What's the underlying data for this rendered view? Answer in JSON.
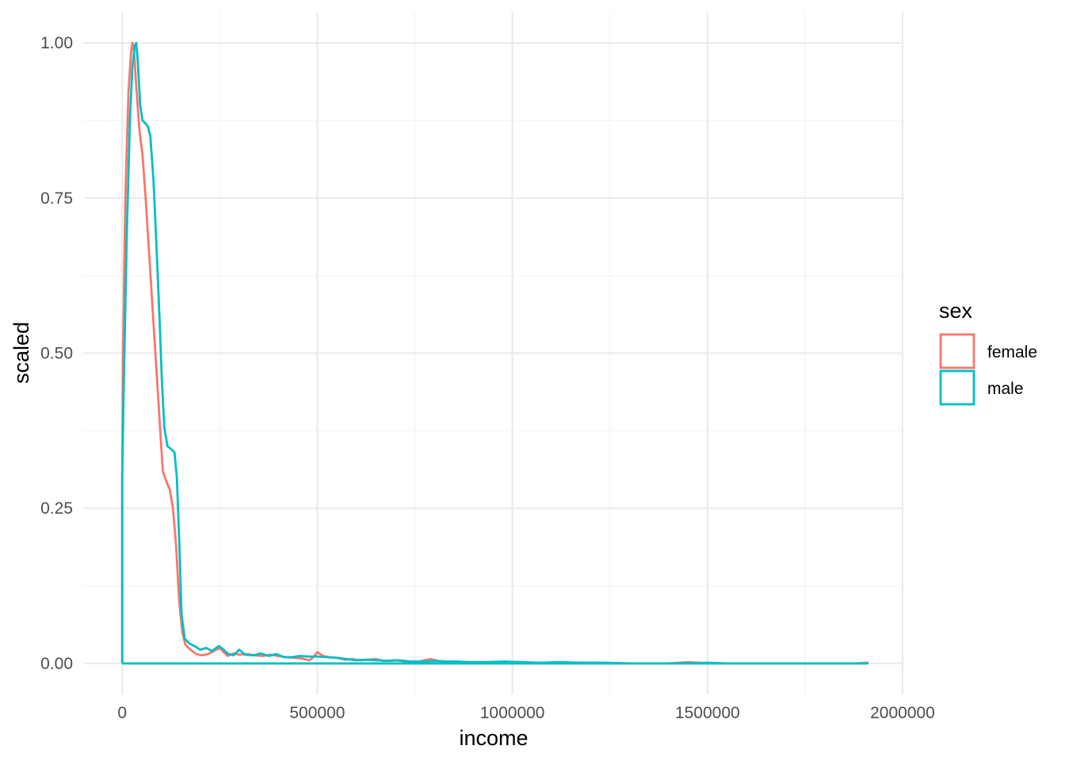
{
  "chart_data": {
    "type": "line",
    "title": "",
    "xlabel": "income",
    "ylabel": "scaled",
    "xlim": [
      -100000,
      2000000
    ],
    "ylim": [
      -0.05,
      1.05
    ],
    "x_ticks": [
      0,
      500000,
      1000000,
      1500000,
      2000000
    ],
    "x_tick_labels": [
      "0",
      "500000",
      "1000000",
      "1500000",
      "2000000"
    ],
    "y_ticks": [
      0.0,
      0.25,
      0.5,
      0.75,
      1.0
    ],
    "y_tick_labels": [
      "0.00",
      "0.25",
      "0.50",
      "0.75",
      "1.00"
    ],
    "grid": true,
    "legend": {
      "title": "sex",
      "position": "right"
    },
    "series": [
      {
        "name": "female",
        "color": "#F8766D",
        "points": [
          [
            0,
            0.0
          ],
          [
            0,
            0.3
          ],
          [
            2000,
            0.5
          ],
          [
            8000,
            0.75
          ],
          [
            16000,
            0.92
          ],
          [
            22000,
            0.98
          ],
          [
            26000,
            1.0
          ],
          [
            30000,
            0.99
          ],
          [
            36000,
            0.93
          ],
          [
            44000,
            0.86
          ],
          [
            52000,
            0.82
          ],
          [
            60000,
            0.75
          ],
          [
            70000,
            0.65
          ],
          [
            80000,
            0.55
          ],
          [
            90000,
            0.45
          ],
          [
            98000,
            0.37
          ],
          [
            104000,
            0.31
          ],
          [
            112000,
            0.295
          ],
          [
            122000,
            0.28
          ],
          [
            130000,
            0.25
          ],
          [
            138000,
            0.19
          ],
          [
            146000,
            0.1
          ],
          [
            154000,
            0.05
          ],
          [
            162000,
            0.03
          ],
          [
            175000,
            0.022
          ],
          [
            190000,
            0.015
          ],
          [
            205000,
            0.013
          ],
          [
            220000,
            0.015
          ],
          [
            235000,
            0.02
          ],
          [
            250000,
            0.025
          ],
          [
            260000,
            0.018
          ],
          [
            270000,
            0.012
          ],
          [
            285000,
            0.016
          ],
          [
            300000,
            0.014
          ],
          [
            320000,
            0.015
          ],
          [
            340000,
            0.013
          ],
          [
            360000,
            0.012
          ],
          [
            380000,
            0.014
          ],
          [
            400000,
            0.012
          ],
          [
            420000,
            0.01
          ],
          [
            440000,
            0.009
          ],
          [
            460000,
            0.008
          ],
          [
            480000,
            0.005
          ],
          [
            490000,
            0.01
          ],
          [
            500000,
            0.018
          ],
          [
            515000,
            0.012
          ],
          [
            530000,
            0.01
          ],
          [
            550000,
            0.009
          ],
          [
            570000,
            0.006
          ],
          [
            590000,
            0.007
          ],
          [
            610000,
            0.005
          ],
          [
            630000,
            0.006
          ],
          [
            650000,
            0.007
          ],
          [
            670000,
            0.004
          ],
          [
            700000,
            0.005
          ],
          [
            730000,
            0.003
          ],
          [
            760000,
            0.003
          ],
          [
            790000,
            0.007
          ],
          [
            810000,
            0.004
          ],
          [
            840000,
            0.003
          ],
          [
            880000,
            0.002
          ],
          [
            930000,
            0.002
          ],
          [
            980000,
            0.002
          ],
          [
            1020000,
            0.002
          ],
          [
            1060000,
            0.001
          ],
          [
            1100000,
            0.001
          ],
          [
            1200000,
            0.001
          ],
          [
            1300000,
            0.0
          ],
          [
            1400000,
            0.0
          ],
          [
            1450000,
            0.002
          ],
          [
            1480000,
            0.001
          ],
          [
            1520000,
            0.0
          ],
          [
            1600000,
            0.0
          ],
          [
            1700000,
            0.0
          ],
          [
            1800000,
            0.0
          ],
          [
            1880000,
            0.0
          ],
          [
            1910000,
            0.001
          ],
          [
            1910000,
            0.0
          ],
          [
            0,
            0.0
          ]
        ]
      },
      {
        "name": "male",
        "color": "#00BFC4",
        "points": [
          [
            0,
            0.0
          ],
          [
            0,
            0.3
          ],
          [
            4000,
            0.45
          ],
          [
            12000,
            0.7
          ],
          [
            20000,
            0.88
          ],
          [
            26000,
            0.96
          ],
          [
            32000,
            0.995
          ],
          [
            36000,
            1.0
          ],
          [
            40000,
            0.97
          ],
          [
            46000,
            0.9
          ],
          [
            52000,
            0.875
          ],
          [
            60000,
            0.87
          ],
          [
            66000,
            0.865
          ],
          [
            72000,
            0.85
          ],
          [
            80000,
            0.78
          ],
          [
            88000,
            0.67
          ],
          [
            96000,
            0.55
          ],
          [
            102000,
            0.45
          ],
          [
            108000,
            0.38
          ],
          [
            116000,
            0.35
          ],
          [
            126000,
            0.345
          ],
          [
            134000,
            0.34
          ],
          [
            140000,
            0.3
          ],
          [
            146000,
            0.2
          ],
          [
            152000,
            0.08
          ],
          [
            160000,
            0.04
          ],
          [
            172000,
            0.032
          ],
          [
            185000,
            0.028
          ],
          [
            200000,
            0.022
          ],
          [
            215000,
            0.025
          ],
          [
            230000,
            0.02
          ],
          [
            248000,
            0.028
          ],
          [
            260000,
            0.022
          ],
          [
            272000,
            0.015
          ],
          [
            285000,
            0.013
          ],
          [
            300000,
            0.022
          ],
          [
            315000,
            0.014
          ],
          [
            335000,
            0.013
          ],
          [
            355000,
            0.016
          ],
          [
            375000,
            0.012
          ],
          [
            395000,
            0.015
          ],
          [
            415000,
            0.01
          ],
          [
            435000,
            0.01
          ],
          [
            455000,
            0.012
          ],
          [
            480000,
            0.011
          ],
          [
            500000,
            0.011
          ],
          [
            525000,
            0.01
          ],
          [
            550000,
            0.009
          ],
          [
            575000,
            0.007
          ],
          [
            600000,
            0.005
          ],
          [
            625000,
            0.006
          ],
          [
            650000,
            0.005
          ],
          [
            680000,
            0.004
          ],
          [
            710000,
            0.005
          ],
          [
            740000,
            0.003
          ],
          [
            770000,
            0.003
          ],
          [
            800000,
            0.004
          ],
          [
            830000,
            0.003
          ],
          [
            860000,
            0.003
          ],
          [
            890000,
            0.002
          ],
          [
            930000,
            0.002
          ],
          [
            980000,
            0.003
          ],
          [
            1020000,
            0.002
          ],
          [
            1070000,
            0.001
          ],
          [
            1120000,
            0.002
          ],
          [
            1180000,
            0.001
          ],
          [
            1240000,
            0.001
          ],
          [
            1300000,
            0.0
          ],
          [
            1400000,
            0.0
          ],
          [
            1500000,
            0.001
          ],
          [
            1550000,
            0.0
          ],
          [
            1650000,
            0.0
          ],
          [
            1750000,
            0.0
          ],
          [
            1850000,
            0.0
          ],
          [
            1905000,
            0.0
          ],
          [
            1910000,
            0.0
          ],
          [
            0,
            0.0
          ]
        ]
      }
    ]
  }
}
